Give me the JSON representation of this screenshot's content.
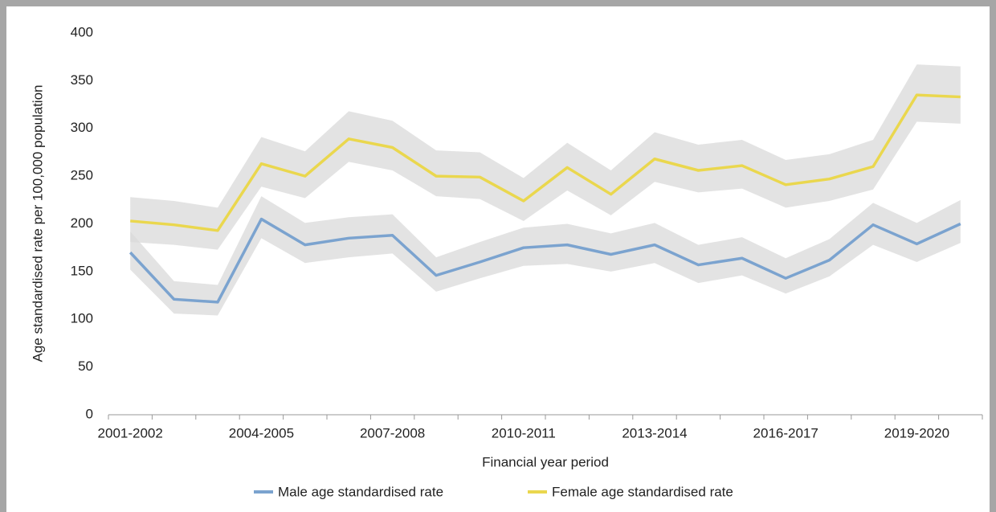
{
  "chart_data": {
    "type": "line",
    "x_label": "Financial year period",
    "y_label": "Age standardised rate per 100,000 population",
    "categories": [
      "2001-2002",
      null,
      null,
      "2004-2005",
      null,
      null,
      "2007-2008",
      null,
      null,
      "2010-2011",
      null,
      null,
      "2013-2014",
      null,
      null,
      "2016-2017",
      null,
      null,
      "2019-2020",
      null
    ],
    "series": [
      {
        "name": "Male age standardised rate",
        "color": "#7ba3cf",
        "values": [
          170,
          121,
          118,
          205,
          178,
          185,
          188,
          146,
          160,
          175,
          178,
          168,
          178,
          157,
          164,
          143,
          162,
          199,
          179,
          200
        ],
        "upper": [
          192,
          140,
          136,
          229,
          201,
          207,
          210,
          165,
          181,
          196,
          200,
          190,
          201,
          178,
          186,
          164,
          184,
          222,
          201,
          225
        ],
        "lower": [
          152,
          106,
          104,
          185,
          159,
          165,
          169,
          129,
          143,
          156,
          158,
          150,
          159,
          138,
          146,
          127,
          145,
          178,
          160,
          180
        ]
      },
      {
        "name": "Female age standardised rate",
        "color": "#ead74e",
        "values": [
          203,
          199,
          193,
          263,
          250,
          289,
          280,
          250,
          249,
          224,
          259,
          231,
          268,
          256,
          261,
          241,
          247,
          260,
          335,
          333
        ],
        "upper": [
          228,
          224,
          217,
          291,
          276,
          318,
          308,
          277,
          275,
          248,
          285,
          256,
          296,
          283,
          288,
          267,
          273,
          288,
          367,
          365
        ],
        "lower": [
          181,
          178,
          173,
          239,
          227,
          265,
          256,
          229,
          226,
          203,
          235,
          209,
          244,
          233,
          237,
          217,
          224,
          236,
          307,
          305
        ]
      }
    ],
    "band_color": "#d9d9d9",
    "ylim": [
      0,
      400
    ],
    "yticks": [
      0,
      50,
      100,
      150,
      200,
      250,
      300,
      350,
      400
    ],
    "grid": false
  }
}
